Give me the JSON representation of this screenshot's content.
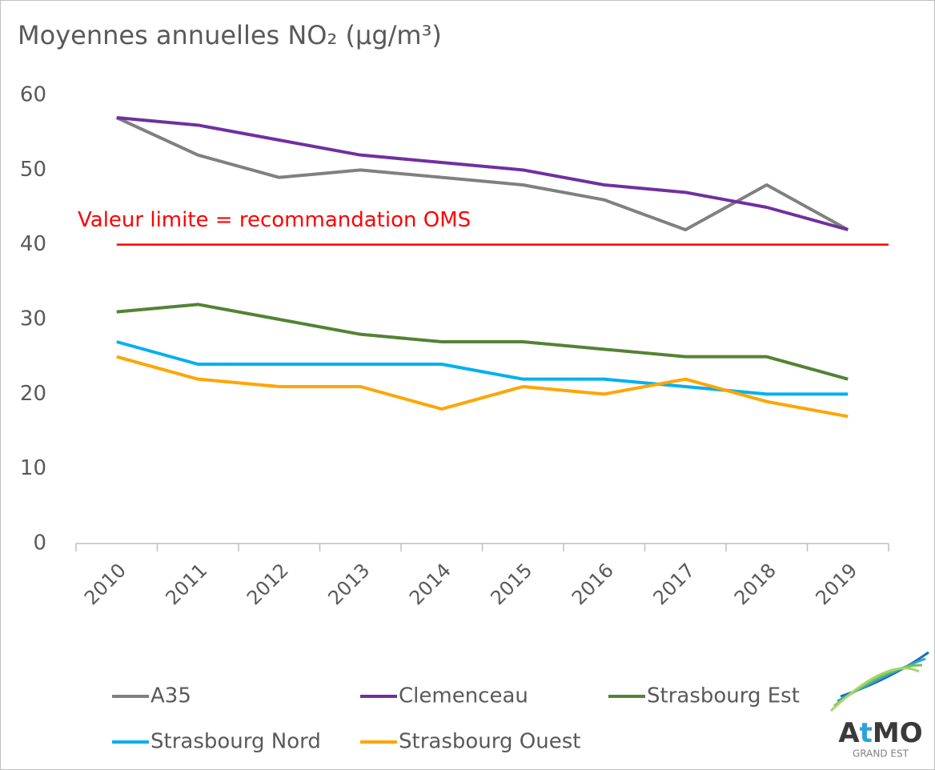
{
  "chart_data": {
    "type": "line",
    "title": "Moyennes annuelles NO₂ (µg/m³)",
    "categories": [
      "2010",
      "2011",
      "2012",
      "2013",
      "2014",
      "2015",
      "2016",
      "2017",
      "2018",
      "2019"
    ],
    "series": [
      {
        "name": "A35",
        "color": "#808080",
        "values": [
          57,
          52,
          49,
          50,
          49,
          48,
          46,
          42,
          48,
          42
        ]
      },
      {
        "name": "Clemenceau",
        "color": "#7030a0",
        "values": [
          57,
          56,
          54,
          52,
          51,
          50,
          48,
          47,
          45,
          42
        ]
      },
      {
        "name": "Strasbourg Est",
        "color": "#548235",
        "values": [
          31,
          32,
          30,
          28,
          27,
          27,
          26,
          25,
          25,
          22
        ]
      },
      {
        "name": "Strasbourg Nord",
        "color": "#00b0f0",
        "values": [
          27,
          24,
          24,
          24,
          24,
          22,
          22,
          21,
          20,
          20
        ]
      },
      {
        "name": "Strasbourg Ouest",
        "color": "#ffa500",
        "values": [
          25,
          22,
          21,
          21,
          18,
          21,
          20,
          22,
          19,
          17
        ]
      }
    ],
    "reference_line": {
      "value": 40,
      "color": "#ff0000",
      "label": "Valeur limite = recommandation OMS"
    },
    "ylim": [
      0,
      60
    ],
    "yticks": [
      0,
      10,
      20,
      30,
      40,
      50,
      60
    ],
    "grid": false,
    "legend": "bottom",
    "logo": {
      "parts": [
        "A",
        "t",
        "MO"
      ],
      "subtitle": "GRAND EST"
    }
  }
}
